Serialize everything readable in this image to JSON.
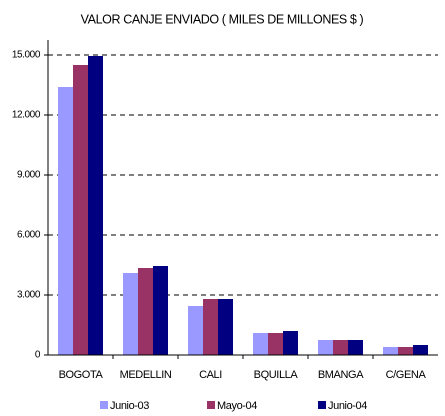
{
  "chart_data": {
    "type": "bar",
    "title": "VALOR CANJE ENVIADO ( MILES DE MILLONES $ )",
    "categories": [
      "BOGOTA",
      "MEDELLIN",
      "CALI",
      "BQUILLA",
      "BMANGA",
      "C/GENA"
    ],
    "series": [
      {
        "name": "Junio-03",
        "color": "#9999ff",
        "values": [
          13400,
          4100,
          2450,
          1100,
          750,
          400
        ]
      },
      {
        "name": "Mayo-04",
        "color": "#993366",
        "values": [
          14500,
          4350,
          2800,
          1100,
          750,
          400
        ]
      },
      {
        "name": "Junio-04",
        "color": "#000080",
        "values": [
          14950,
          4450,
          2800,
          1200,
          750,
          500
        ]
      }
    ],
    "ylim": [
      0,
      15000
    ],
    "yticks": [
      0,
      {
        "value": 3000,
        "label": "3.000"
      },
      {
        "value": 6000,
        "label": "6.000"
      },
      {
        "value": 9000,
        "label": "9.000"
      },
      {
        "value": 12000,
        "label": "12.000"
      },
      {
        "value": 15000,
        "label": "15.000"
      }
    ],
    "grid": true,
    "legend": "bottom"
  }
}
